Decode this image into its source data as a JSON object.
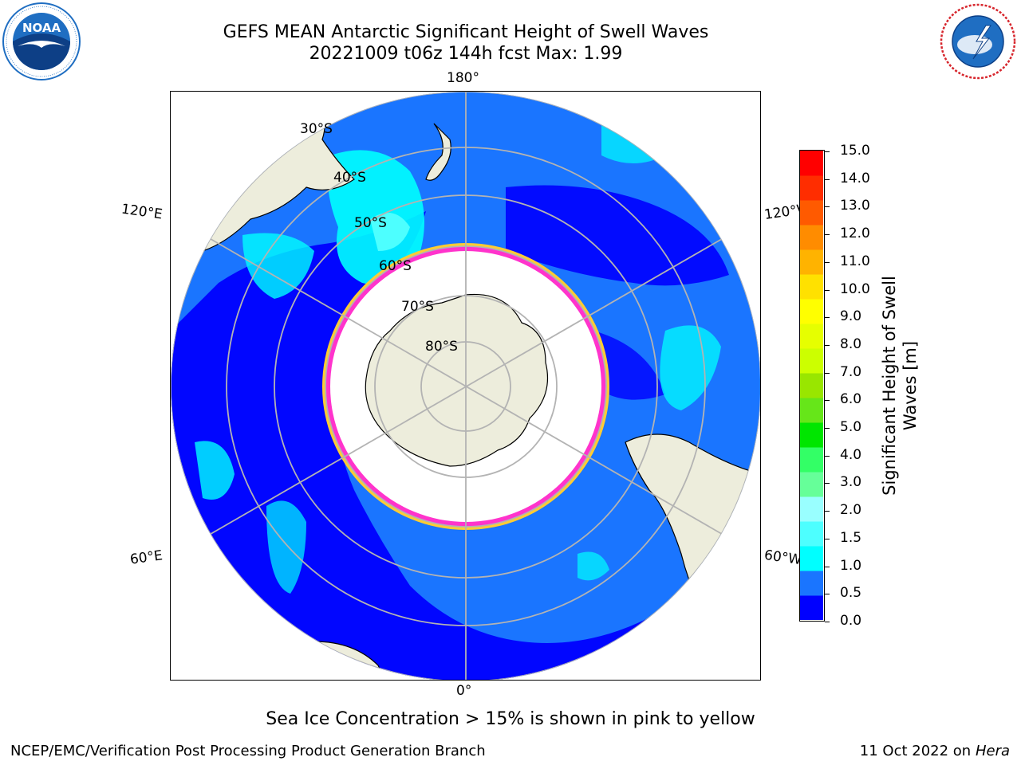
{
  "header": {
    "title_line1": "GEFS MEAN Antarctic Significant Height of Swell Waves",
    "title_line2": "20221009 t06z 144h fcst   Max: 1.99"
  },
  "logos": {
    "left": {
      "text": "NOAA",
      "icon": "noaa-logo-icon",
      "color": "#1f6ec2"
    },
    "right": {
      "text": "NATIONAL WEATHER SERVICE",
      "icon": "nws-logo-icon",
      "color": "#1f6ec2"
    }
  },
  "map": {
    "projection": "south-polar-stereographic",
    "meridian_labels": {
      "top": "180°",
      "bottom": "0°",
      "left_upper": "120°E",
      "left_lower": "60°E",
      "right_upper": "120°W",
      "right_lower": "60°W"
    },
    "latitude_labels": [
      "30°S",
      "40°S",
      "50°S",
      "60°S",
      "70°S",
      "80°S"
    ],
    "colors": {
      "land": "#ededdc",
      "ocean_low": "#0000ff",
      "ocean_mid": "#1a75ff",
      "ocean_high": "#00ffff",
      "ice_edge": "#ff33cc",
      "ice_edge_inner": "#ffcc33",
      "grid": "#b3b3b3"
    }
  },
  "colorbar": {
    "label": "Significant Height of Swell Waves [m]",
    "ticks": [
      "15.0",
      "14.0",
      "13.0",
      "12.0",
      "11.0",
      "10.0",
      "9.0",
      "8.0",
      "7.0",
      "6.0",
      "5.0",
      "4.0",
      "3.0",
      "2.0",
      "1.5",
      "1.0",
      "0.5",
      "0.0"
    ],
    "colors": [
      "#0000ff",
      "#1a75ff",
      "#00ffff",
      "#4dffff",
      "#99ffff",
      "#66ff99",
      "#33ff66",
      "#00e600",
      "#66e619",
      "#99e600",
      "#ccff00",
      "#e6ff00",
      "#ffff00",
      "#ffe100",
      "#ffb300",
      "#ff8c00",
      "#ff5a00",
      "#ff2d00",
      "#ff0000"
    ]
  },
  "footnote": "Sea Ice Concentration > 15% is shown in pink to yellow",
  "footer": {
    "left": "NCEP/EMC/Verification Post Processing Product Generation Branch",
    "right_prefix": "11 Oct 2022 on ",
    "right_host": "Hera"
  }
}
